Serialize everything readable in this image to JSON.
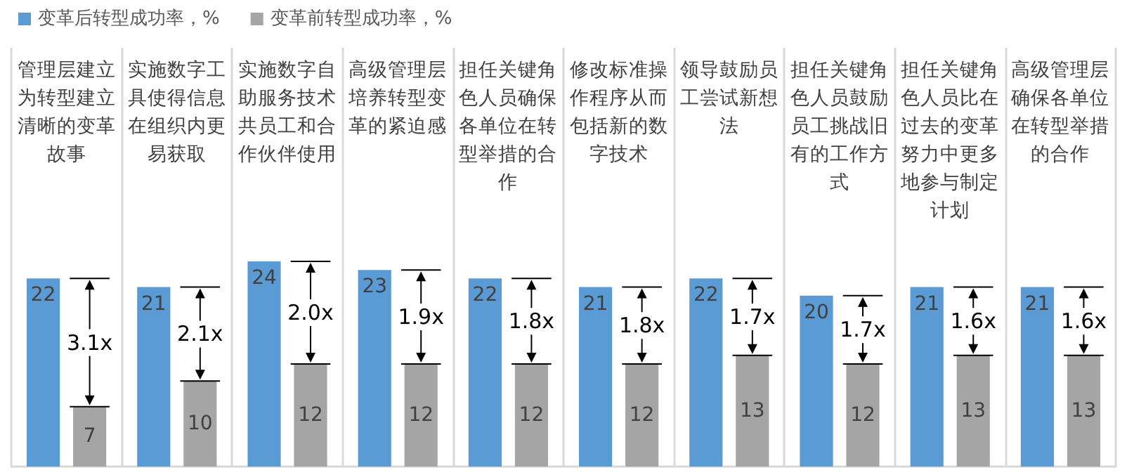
{
  "chart_data": {
    "type": "bar",
    "categories": [
      "管理层建立为转型建立清晰的变革故事",
      "实施数字工具使得信息在组织内更易获取",
      "实施数字自助服务技术共员工和合作伙伴使用",
      "高级管理层培养转型变革的紧迫感",
      "担任关键角色人员确保各单位在转型举措的合作",
      "修改标准操作程序从而包括新的数字技术",
      "领导鼓励员工尝试新想法",
      "担任关键角色人员鼓励员工挑战旧有的工作方式",
      "担任关键角色人员比在过去的变革努力中更多地参与制定计划",
      "高级管理层确保各单位在转型举措的合作"
    ],
    "series": [
      {
        "name": "变革后转型成功率，%",
        "color": "#5b9bd5",
        "values": [
          22,
          21,
          24,
          23,
          22,
          21,
          22,
          20,
          21,
          21
        ]
      },
      {
        "name": "变革前转型成功率，%",
        "color": "#a5a5a5",
        "values": [
          7,
          10,
          12,
          12,
          12,
          12,
          13,
          12,
          13,
          13
        ]
      }
    ],
    "annotations": [
      "3.1x",
      "2.1x",
      "2.0x",
      "1.9x",
      "1.8x",
      "1.8x",
      "1.7x",
      "1.7x",
      "1.6x",
      "1.6x"
    ],
    "data_labels": true,
    "legend": "top left",
    "grid": "x"
  }
}
